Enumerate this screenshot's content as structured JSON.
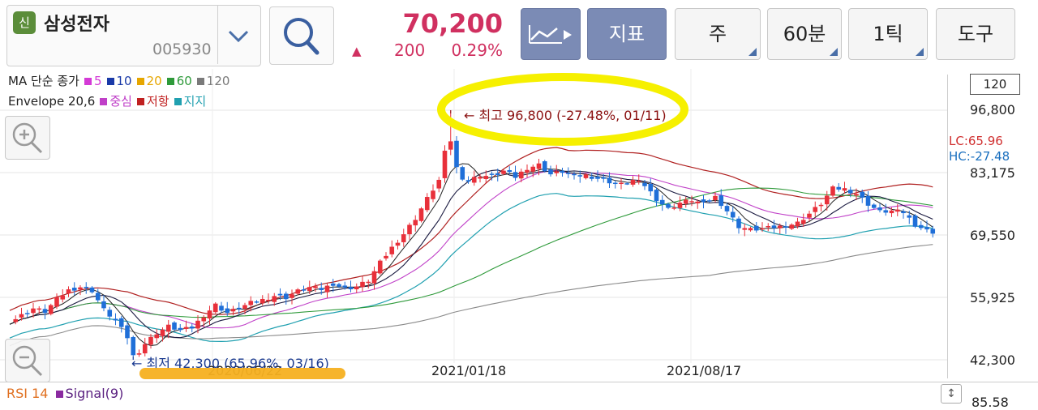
{
  "header": {
    "badge": "신",
    "stock_name": "삼성전자",
    "stock_code": "005930",
    "price": "70,200",
    "change": "200",
    "change_pct": "0.29%",
    "indicator_label": "지표",
    "period_week": "주",
    "period_60min": "60분",
    "period_tick": "1틱",
    "tools_label": "도구",
    "rise_color": "#d03060"
  },
  "legend": {
    "ma_title": "MA 단순 종가",
    "ma_items": [
      {
        "label": "5",
        "color": "#d43ad6"
      },
      {
        "label": "10",
        "color": "#1a3aa8"
      },
      {
        "label": "20",
        "color": "#e6a600"
      },
      {
        "label": "60",
        "color": "#2e9a3a"
      },
      {
        "label": "120",
        "color": "#7a7a7a"
      }
    ],
    "env_title": "Envelope 20,6",
    "env_items": [
      {
        "label": "중심",
        "color": "#c040c8"
      },
      {
        "label": "저항",
        "color": "#c02020"
      },
      {
        "label": "지지",
        "color": "#20a0b0"
      }
    ]
  },
  "chart_data": {
    "type": "candlestick",
    "yticks": [
      "96,800",
      "83,175",
      "69,550",
      "55,925",
      "42,300"
    ],
    "ytick_values": [
      96800,
      83175,
      69550,
      55925,
      42300
    ],
    "ylim": [
      42300,
      96800
    ],
    "xticks": [
      "2020/06/22",
      "2021/01/18",
      "2021/08/17"
    ],
    "ma_period_box": "120",
    "lc_label": "LC:65.96",
    "hc_label": "HC:-27.48",
    "high_annotation": "← 최고 96,800 (-27.48%, 01/11)",
    "low_annotation": "← 최저 42,300 (65.96%, 03/16)",
    "high": 96800,
    "low": 42300,
    "close_path": [
      [
        0,
        50500
      ],
      [
        2,
        52000
      ],
      [
        4,
        53500
      ],
      [
        6,
        52800
      ],
      [
        8,
        55500
      ],
      [
        10,
        57500
      ],
      [
        12,
        58200
      ],
      [
        14,
        57400
      ],
      [
        16,
        53200
      ],
      [
        18,
        50800
      ],
      [
        20,
        47200
      ],
      [
        21,
        42500
      ],
      [
        23,
        45800
      ],
      [
        25,
        48200
      ],
      [
        27,
        49600
      ],
      [
        29,
        48700
      ],
      [
        31,
        49300
      ],
      [
        33,
        52000
      ],
      [
        35,
        54300
      ],
      [
        37,
        52500
      ],
      [
        39,
        53600
      ],
      [
        41,
        54700
      ],
      [
        43,
        55400
      ],
      [
        45,
        56300
      ],
      [
        47,
        55900
      ],
      [
        49,
        57300
      ],
      [
        51,
        58100
      ],
      [
        53,
        57700
      ],
      [
        55,
        58900
      ],
      [
        57,
        57800
      ],
      [
        59,
        58300
      ],
      [
        61,
        59600
      ],
      [
        63,
        63500
      ],
      [
        65,
        66800
      ],
      [
        67,
        69800
      ],
      [
        69,
        73200
      ],
      [
        71,
        77500
      ],
      [
        73,
        81500
      ],
      [
        74,
        87500
      ],
      [
        75,
        90800
      ],
      [
        76,
        84200
      ],
      [
        77,
        82100
      ],
      [
        78,
        81300
      ],
      [
        80,
        82600
      ],
      [
        82,
        82300
      ],
      [
        84,
        83500
      ],
      [
        86,
        82200
      ],
      [
        88,
        84200
      ],
      [
        90,
        84900
      ],
      [
        92,
        82800
      ],
      [
        94,
        83400
      ],
      [
        96,
        82400
      ],
      [
        98,
        82600
      ],
      [
        100,
        81900
      ],
      [
        102,
        81200
      ],
      [
        104,
        80600
      ],
      [
        106,
        81500
      ],
      [
        108,
        80400
      ],
      [
        110,
        77400
      ],
      [
        112,
        75200
      ],
      [
        114,
        76600
      ],
      [
        116,
        77200
      ],
      [
        118,
        76300
      ],
      [
        120,
        77900
      ],
      [
        122,
        74800
      ],
      [
        124,
        71400
      ],
      [
        126,
        70700
      ],
      [
        128,
        70900
      ],
      [
        130,
        71200
      ],
      [
        132,
        71600
      ],
      [
        134,
        72200
      ],
      [
        136,
        74200
      ],
      [
        138,
        76400
      ],
      [
        140,
        79700
      ],
      [
        142,
        79600
      ],
      [
        144,
        78600
      ],
      [
        146,
        76300
      ],
      [
        148,
        74600
      ],
      [
        150,
        74800
      ],
      [
        152,
        74500
      ],
      [
        154,
        71800
      ],
      [
        156,
        70500
      ],
      [
        157,
        70200
      ]
    ],
    "candle_colors": {
      "up": "#e8303a",
      "down": "#1f6fd8"
    }
  },
  "bottom": {
    "rsi_label": "RSI 14",
    "signal_label": "Signal(9)",
    "rsi_value": "85.58"
  }
}
